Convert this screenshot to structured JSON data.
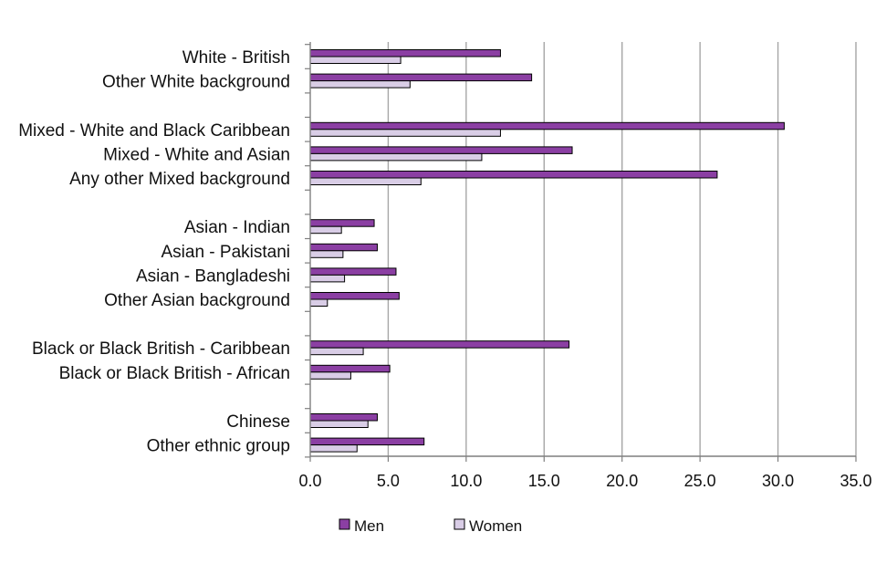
{
  "chart_data": {
    "type": "bar",
    "orientation": "horizontal",
    "title": "",
    "xlabel": "",
    "ylabel": "",
    "xlim": [
      0,
      35
    ],
    "x_ticks": [
      "0.0",
      "5.0",
      "10.0",
      "15.0",
      "20.0",
      "25.0",
      "30.0",
      "35.0"
    ],
    "x_tick_values": [
      0,
      5,
      10,
      15,
      20,
      25,
      30,
      35
    ],
    "grid": "vertical",
    "legend_position": "bottom",
    "groups": [
      [
        "White - British",
        "Other White background"
      ],
      [
        "Mixed - White and Black Caribbean",
        "Mixed - White and Asian",
        "Any other Mixed background"
      ],
      [
        "Asian - Indian",
        "Asian - Pakistani",
        "Asian - Bangladeshi",
        "Other Asian background"
      ],
      [
        "Black or Black British - Caribbean",
        "Black or Black British - African"
      ],
      [
        "Chinese",
        "Other ethnic group"
      ]
    ],
    "categories": [
      "White - British",
      "Other White background",
      "Mixed - White and Black Caribbean",
      "Mixed - White and Asian",
      "Any other Mixed background",
      "Asian - Indian",
      "Asian - Pakistani",
      "Asian - Bangladeshi",
      "Other Asian background",
      "Black or Black British - Caribbean",
      "Black or Black British - African",
      "Chinese",
      "Other ethnic group"
    ],
    "series": [
      {
        "name": "Men",
        "color": "#8b3fa3",
        "values": [
          12.2,
          14.2,
          30.4,
          16.8,
          26.1,
          4.1,
          4.3,
          5.5,
          5.7,
          16.6,
          5.1,
          4.3,
          7.3
        ]
      },
      {
        "name": "Women",
        "color": "#d9cde6",
        "values": [
          5.8,
          6.4,
          12.2,
          11.0,
          7.1,
          2.0,
          2.1,
          2.2,
          1.1,
          3.4,
          2.6,
          3.7,
          3.0
        ]
      }
    ]
  }
}
